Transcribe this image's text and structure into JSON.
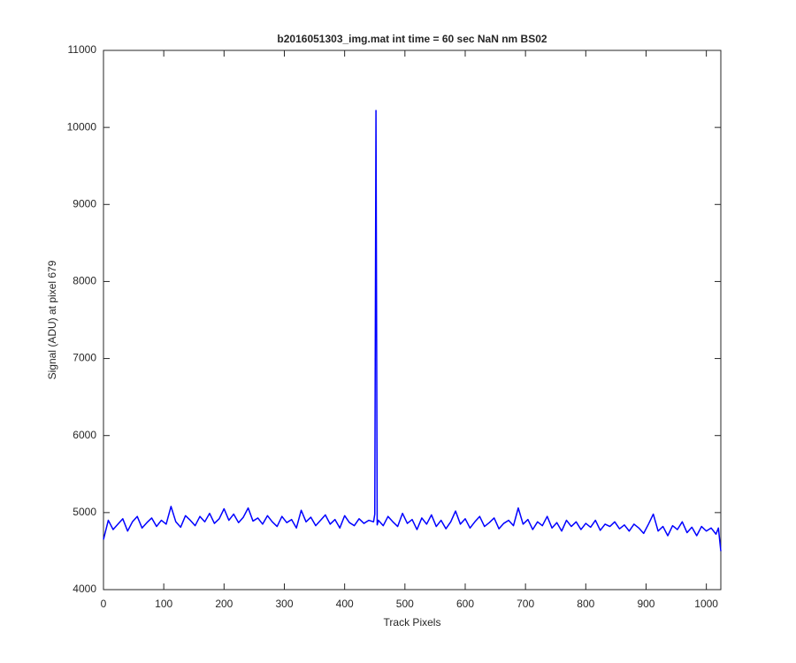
{
  "chart_data": {
    "type": "line",
    "title": "b2016051303_img.mat int time = 60 sec  NaN nm BS02",
    "x_label": "Track Pixels",
    "y_label": "Signal (ADU) at pixel 679",
    "xlim": [
      0,
      1024
    ],
    "xticks": [
      0,
      100,
      200,
      300,
      400,
      500,
      600,
      700,
      800,
      900,
      1000
    ],
    "ylim": [
      4000,
      11000
    ],
    "yticks": [
      4000,
      5000,
      6000,
      7000,
      8000,
      9000,
      10000,
      11000
    ],
    "grid": false,
    "x": [
      0,
      8,
      16,
      24,
      32,
      40,
      48,
      56,
      64,
      72,
      80,
      88,
      96,
      104,
      112,
      120,
      128,
      136,
      144,
      152,
      160,
      168,
      176,
      184,
      192,
      200,
      208,
      216,
      224,
      232,
      240,
      248,
      256,
      264,
      272,
      280,
      288,
      296,
      304,
      312,
      320,
      328,
      336,
      344,
      352,
      360,
      368,
      376,
      384,
      392,
      400,
      408,
      416,
      424,
      432,
      440,
      448,
      450,
      452,
      454,
      456,
      464,
      472,
      480,
      488,
      496,
      504,
      512,
      520,
      528,
      536,
      544,
      552,
      560,
      568,
      576,
      584,
      592,
      600,
      608,
      616,
      624,
      632,
      640,
      648,
      656,
      664,
      672,
      680,
      688,
      696,
      704,
      712,
      720,
      728,
      736,
      744,
      752,
      760,
      768,
      776,
      784,
      792,
      800,
      808,
      816,
      824,
      832,
      840,
      848,
      856,
      864,
      872,
      880,
      888,
      896,
      904,
      912,
      920,
      928,
      936,
      944,
      952,
      960,
      968,
      976,
      984,
      992,
      1000,
      1008,
      1016,
      1020,
      1024
    ],
    "series": [
      {
        "name": "signal",
        "color": "#0000ff",
        "values": [
          4650,
          4900,
          4780,
          4850,
          4920,
          4760,
          4880,
          4950,
          4800,
          4870,
          4930,
          4820,
          4900,
          4850,
          5080,
          4880,
          4810,
          4960,
          4900,
          4830,
          4950,
          4880,
          4990,
          4860,
          4920,
          5050,
          4900,
          4980,
          4870,
          4940,
          5060,
          4890,
          4930,
          4850,
          4960,
          4880,
          4820,
          4950,
          4870,
          4910,
          4800,
          5030,
          4880,
          4940,
          4830,
          4900,
          4970,
          4850,
          4910,
          4800,
          4960,
          4870,
          4830,
          4920,
          4860,
          4900,
          4880,
          4980,
          10220,
          4840,
          4900,
          4830,
          4950,
          4880,
          4820,
          4990,
          4860,
          4910,
          4780,
          4930,
          4850,
          4970,
          4820,
          4900,
          4790,
          4880,
          5020,
          4850,
          4920,
          4800,
          4880,
          4950,
          4820,
          4870,
          4930,
          4790,
          4860,
          4900,
          4830,
          5060,
          4850,
          4910,
          4780,
          4880,
          4830,
          4950,
          4800,
          4870,
          4760,
          4900,
          4820,
          4880,
          4780,
          4860,
          4810,
          4900,
          4770,
          4850,
          4820,
          4880,
          4790,
          4840,
          4760,
          4850,
          4800,
          4730,
          4850,
          4980,
          4760,
          4820,
          4700,
          4830,
          4780,
          4880,
          4740,
          4810,
          4700,
          4820,
          4760,
          4800,
          4720,
          4800,
          4500
        ]
      }
    ]
  }
}
